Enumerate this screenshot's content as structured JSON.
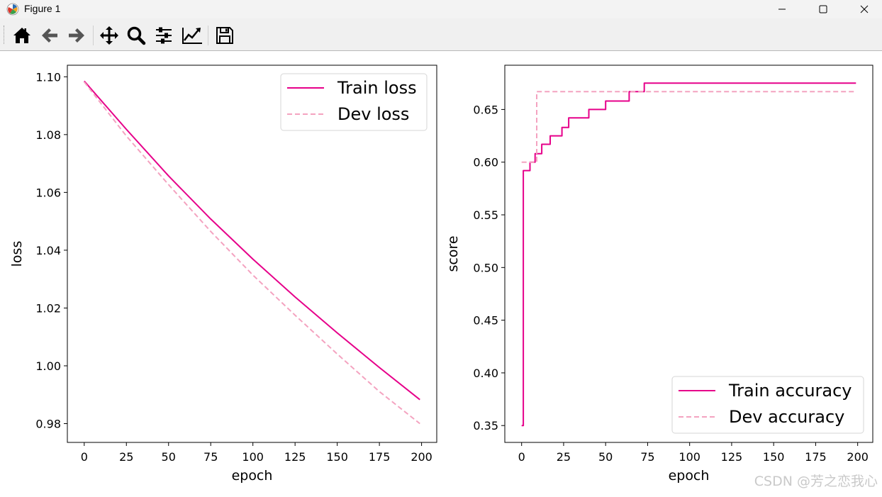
{
  "window": {
    "title": "Figure 1"
  },
  "toolbar": {
    "buttons": [
      {
        "name": "home-button",
        "icon": "home-icon"
      },
      {
        "name": "back-button",
        "icon": "arrow-left-icon"
      },
      {
        "name": "forward-button",
        "icon": "arrow-right-icon"
      },
      {
        "name": "pan-button",
        "icon": "move-icon"
      },
      {
        "name": "zoom-button",
        "icon": "magnifier-icon"
      },
      {
        "name": "subplots-button",
        "icon": "sliders-icon"
      },
      {
        "name": "edit-axis-button",
        "icon": "line-chart-icon"
      },
      {
        "name": "save-button",
        "icon": "floppy-disk-icon"
      }
    ]
  },
  "colors": {
    "train": "#e6008a",
    "dev": "#f4a3c0"
  },
  "watermark": "CSDN @芳之恋我心",
  "chart_data": [
    {
      "type": "line",
      "xlabel": "epoch",
      "ylabel": "loss",
      "xlim": [
        -10,
        209
      ],
      "ylim": [
        0.9735,
        1.104
      ],
      "xticks": [
        0,
        25,
        50,
        75,
        100,
        125,
        150,
        175,
        200
      ],
      "yticks": [
        0.98,
        1.0,
        1.02,
        1.04,
        1.06,
        1.08,
        1.1
      ],
      "ytick_labels": [
        "0.98",
        "1.00",
        "1.02",
        "1.04",
        "1.06",
        "1.08",
        "1.10"
      ],
      "legend_position": "top-right",
      "series": [
        {
          "name": "Train loss",
          "style": "solid",
          "x": [
            0,
            25,
            50,
            75,
            100,
            125,
            150,
            175,
            199
          ],
          "y": [
            1.0985,
            1.0818,
            1.0657,
            1.0508,
            1.0369,
            1.0238,
            1.0114,
            0.9994,
            0.9883
          ]
        },
        {
          "name": "Dev loss",
          "style": "dashed",
          "x": [
            0,
            25,
            50,
            75,
            100,
            125,
            150,
            175,
            199
          ],
          "y": [
            1.0982,
            1.0795,
            1.0627,
            1.0465,
            1.0314,
            1.0175,
            1.0041,
            0.9911,
            0.98
          ]
        }
      ]
    },
    {
      "type": "line",
      "xlabel": "epoch",
      "ylabel": "score",
      "xlim": [
        -10,
        209
      ],
      "ylim": [
        0.334,
        0.692
      ],
      "xticks": [
        0,
        25,
        50,
        75,
        100,
        125,
        150,
        175,
        200
      ],
      "yticks": [
        0.35,
        0.4,
        0.45,
        0.5,
        0.55,
        0.6,
        0.65
      ],
      "ytick_labels": [
        "0.35",
        "0.40",
        "0.45",
        "0.50",
        "0.55",
        "0.60",
        "0.65"
      ],
      "legend_position": "bottom-right",
      "series": [
        {
          "name": "Train accuracy",
          "style": "solid",
          "steps": true,
          "x": [
            0,
            1,
            3,
            5,
            7,
            8,
            10,
            12,
            14,
            17,
            20,
            24,
            26,
            28,
            30,
            32,
            35,
            38,
            40,
            45,
            50,
            55,
            60,
            64,
            68,
            72,
            73,
            80,
            100,
            150,
            199
          ],
          "y": [
            0.35,
            0.592,
            0.592,
            0.6,
            0.6,
            0.608,
            0.608,
            0.617,
            0.617,
            0.625,
            0.625,
            0.633,
            0.633,
            0.642,
            0.642,
            0.642,
            0.642,
            0.642,
            0.65,
            0.65,
            0.658,
            0.658,
            0.658,
            0.667,
            0.667,
            0.667,
            0.675,
            0.675,
            0.675,
            0.675,
            0.675
          ]
        },
        {
          "name": "Dev accuracy",
          "style": "dashed",
          "steps": true,
          "x": [
            0,
            8,
            9,
            199
          ],
          "y": [
            0.6,
            0.6,
            0.667,
            0.667
          ]
        }
      ]
    }
  ]
}
